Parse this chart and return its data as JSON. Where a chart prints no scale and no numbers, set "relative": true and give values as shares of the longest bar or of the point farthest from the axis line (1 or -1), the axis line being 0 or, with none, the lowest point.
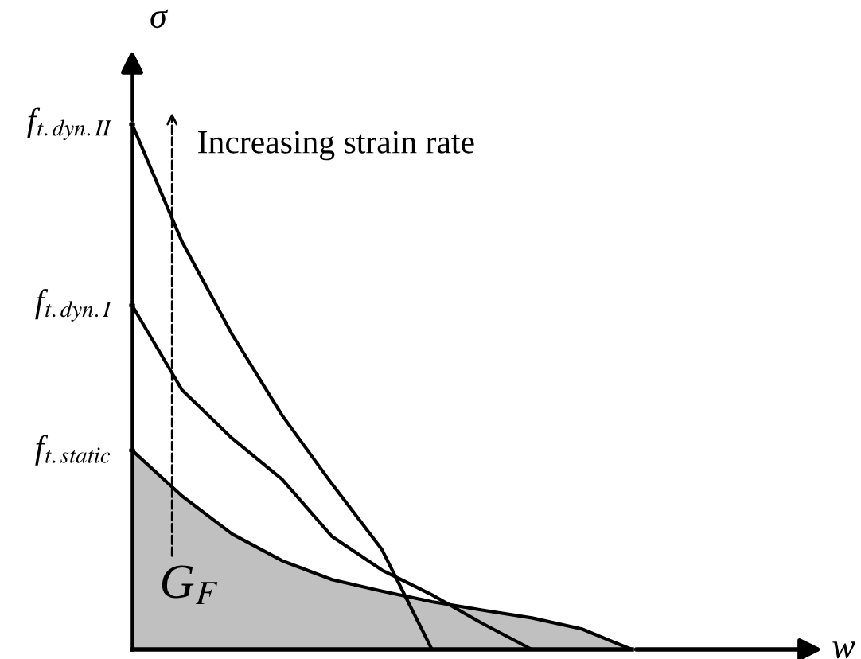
{
  "chart_data": {
    "type": "line",
    "relative": true,
    "ylabel": "σ",
    "categories": [
      null,
      null,
      null,
      null,
      null,
      null,
      null,
      null,
      null,
      null,
      null
    ],
    "series": [
      {
        "type": "area",
        "color": "#c0c0c0",
        "values": [
          0.379,
          0.292,
          0.22,
          0.169,
          0.133,
          0.111,
          0.091,
          0.075,
          0.06,
          0.039,
          0
        ]
      },
      {
        "color": "#000000",
        "values": [
          0.655,
          0.494,
          0.402,
          0.324,
          0.215,
          0.151,
          0.104,
          0.05,
          0,
          null,
          null
        ]
      },
      {
        "color": "#000000",
        "values": [
          1,
          0.776,
          0.6,
          0.446,
          0.315,
          0.19,
          0,
          null,
          null,
          null,
          null
        ]
      }
    ],
    "annotations": [
      "Increasing strain rate",
      "G$_{F}$",
      "f$_{t.static}$",
      "f$_{t.dyn.I}$",
      "f$_{t.dyn.II}$",
      "w"
    ],
    "grid": false
  }
}
